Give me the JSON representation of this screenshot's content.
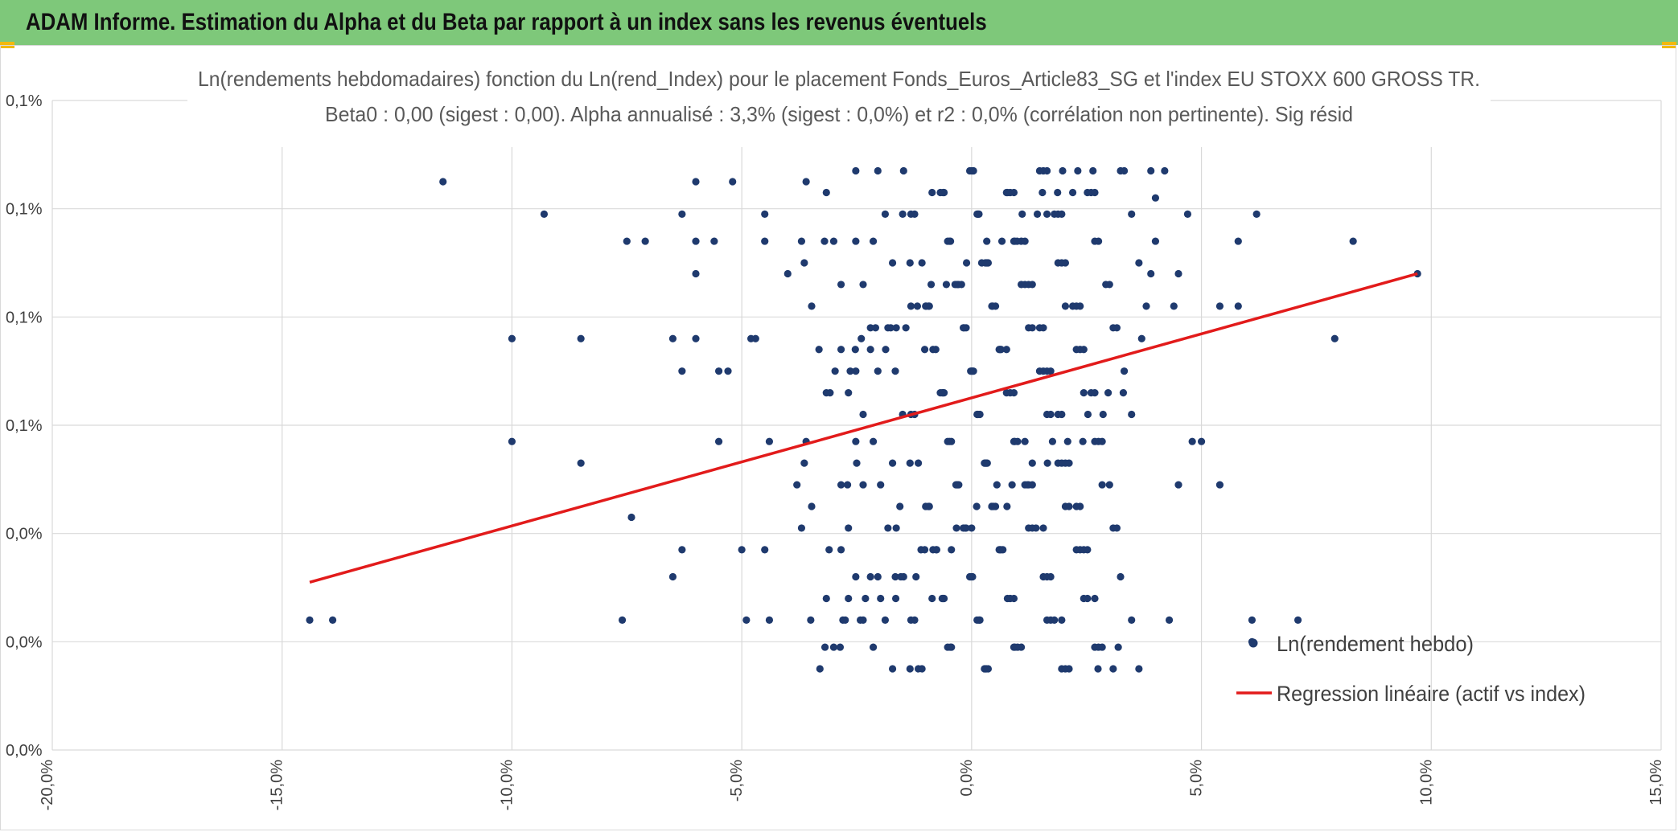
{
  "header": {
    "title": "ADAM Informe. Estimation du Alpha et du Beta par rapport à un index sans les revenus éventuels"
  },
  "colors": {
    "banner": "#7ec87a",
    "accent": "#f2b90f",
    "points": "#1f3a6e",
    "regression": "#e21b1b",
    "grid": "#d9d9d9"
  },
  "chart_data": {
    "type": "scatter",
    "title": "Ln(rendements hebdomadaires) fonction du Ln(rend_Index) pour le placement Fonds_Euros_Article83_SG et l'index EU STOXX 600 GROSS TR.",
    "subtitle": "Beta0 : 0,00 (sigest : 0,00). Alpha annualisé : 3,3% (sigest : 0,0%) et r2 : 0,0% (corrélation non pertinente). Sig résid",
    "xlabel": "",
    "ylabel": "",
    "xlim": [
      -0.2,
      0.15
    ],
    "ylim": [
      0.0,
      0.0012
    ],
    "x_ticks": [
      -0.2,
      -0.15,
      -0.1,
      -0.05,
      0.0,
      0.05,
      0.1,
      0.15
    ],
    "x_tick_labels": [
      "-20,0%",
      "-15,0%",
      "-10,0%",
      "-5,0%",
      "0,0%",
      "5,0%",
      "10,0%",
      "15,0%"
    ],
    "y_ticks": [
      0.0,
      0.0002,
      0.0004,
      0.0006,
      0.0008,
      0.001,
      0.0012
    ],
    "y_tick_labels": [
      "0,0%",
      "0,0%",
      "0,0%",
      "0,1%",
      "0,1%",
      "0,1%",
      "0,1%"
    ],
    "grid": true,
    "legend_position": "bottom-right",
    "legend": [
      "Ln(rendement hebdo)",
      "Regression linéaire (actif vs index)"
    ],
    "series": [
      {
        "name": "Ln(rendement hebdo)",
        "kind": "points",
        "points": [
          [
            -0.144,
            0.00024
          ],
          [
            -0.139,
            0.00024
          ],
          [
            -0.115,
            0.00105
          ],
          [
            -0.093,
            0.00099
          ],
          [
            -0.1,
            0.00076
          ],
          [
            -0.1,
            0.00057
          ],
          [
            -0.085,
            0.00076
          ],
          [
            -0.085,
            0.00053
          ],
          [
            -0.075,
            0.00094
          ],
          [
            -0.071,
            0.00094
          ],
          [
            -0.074,
            0.00043
          ],
          [
            -0.076,
            0.00024
          ],
          [
            -0.063,
            0.00099
          ],
          [
            -0.06,
            0.00094
          ],
          [
            -0.06,
            0.00088
          ],
          [
            -0.06,
            0.00076
          ],
          [
            -0.065,
            0.00076
          ],
          [
            -0.063,
            0.0007
          ],
          [
            -0.065,
            0.00032
          ],
          [
            -0.063,
            0.00037
          ],
          [
            -0.06,
            0.00105
          ],
          [
            -0.052,
            0.00105
          ],
          [
            -0.056,
            0.00094
          ],
          [
            -0.055,
            0.0007
          ],
          [
            -0.053,
            0.0007
          ],
          [
            -0.055,
            0.00057
          ],
          [
            -0.05,
            0.00037
          ],
          [
            -0.049,
            0.00024
          ],
          [
            -0.045,
            0.00099
          ],
          [
            -0.045,
            0.00094
          ],
          [
            -0.048,
            0.00076
          ],
          [
            -0.047,
            0.00076
          ],
          [
            -0.044,
            0.00057
          ],
          [
            -0.045,
            0.00037
          ],
          [
            -0.044,
            0.00024
          ],
          [
            -0.04,
            0.00088
          ],
          [
            -0.037,
            0.00094
          ],
          [
            -0.036,
            0.00105
          ],
          [
            -0.037,
            0.00041
          ],
          [
            -0.038,
            0.00049
          ],
          [
            -0.036,
            0.00057
          ],
          [
            -0.035,
            0.00024
          ],
          [
            -0.032,
            0.00094
          ],
          [
            -0.031,
            0.00037
          ],
          [
            -0.028,
            0.00024
          ],
          [
            -0.027,
            0.00049
          ],
          [
            -0.025,
            0.00053
          ],
          [
            -0.024,
            0.00076
          ],
          [
            -0.022,
            0.00032
          ],
          [
            0.062,
            0.00099
          ],
          [
            0.058,
            0.00094
          ],
          [
            0.054,
            0.00082
          ],
          [
            0.058,
            0.00082
          ],
          [
            0.079,
            0.00076
          ],
          [
            0.083,
            0.00094
          ],
          [
            0.097,
            0.00088
          ],
          [
            0.071,
            0.00024
          ],
          [
            0.061,
            0.00024
          ],
          [
            0.061,
            0.0002
          ],
          [
            0.054,
            0.00049
          ],
          [
            0.05,
            0.00057
          ],
          [
            0.048,
            0.00057
          ],
          [
            0.045,
            0.00049
          ],
          [
            0.043,
            0.00024
          ],
          [
            0.044,
            0.00082
          ],
          [
            0.045,
            0.00088
          ],
          [
            0.047,
            0.00099
          ],
          [
            0.042,
            0.00107
          ],
          [
            0.039,
            0.00107
          ],
          [
            0.037,
            0.00076
          ],
          [
            0.038,
            0.00082
          ],
          [
            0.039,
            0.00088
          ],
          [
            0.04,
            0.00094
          ],
          [
            0.04,
            0.00102
          ]
        ]
      },
      {
        "name": "Regression linéaire (actif vs index)",
        "kind": "line",
        "x": [
          -0.144,
          0.097
        ],
        "y": [
          0.00031,
          0.00088
        ]
      }
    ]
  }
}
